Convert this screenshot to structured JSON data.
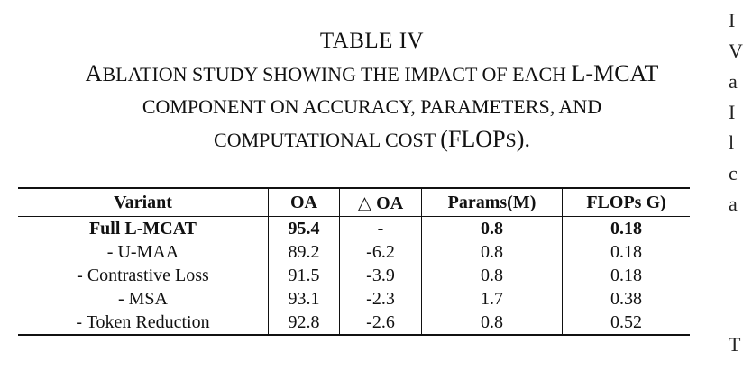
{
  "caption": {
    "title": "TABLE IV",
    "line1_a": "A",
    "line1_b": "BLATION STUDY SHOWING THE IMPACT OF EACH ",
    "line1_c": "L-MCAT",
    "line2": "COMPONENT ON ACCURACY, PARAMETERS, AND",
    "line3_a": "COMPUTATIONAL COST ",
    "line3_b": "(FLOP",
    "line3_c": "S",
    "line3_d": ")."
  },
  "table": {
    "headers": [
      "Variant",
      "OA",
      "△ OA",
      "Params(M)",
      "FLOPs G)"
    ],
    "rows": [
      [
        "Full L-MCAT",
        "95.4",
        "-",
        "0.8",
        "0.18"
      ],
      [
        "- U-MAA",
        "89.2",
        "-6.2",
        "0.8",
        "0.18"
      ],
      [
        "- Contrastive Loss",
        "91.5",
        "-3.9",
        "0.8",
        "0.18"
      ],
      [
        "- MSA",
        "93.1",
        "-2.3",
        "1.7",
        "0.38"
      ],
      [
        "- Token Reduction",
        "92.8",
        "-2.6",
        "0.8",
        "0.52"
      ]
    ]
  },
  "right_edge_glyphs": [
    "I",
    "V",
    "a",
    "I",
    "l",
    "c",
    "a",
    "T"
  ]
}
